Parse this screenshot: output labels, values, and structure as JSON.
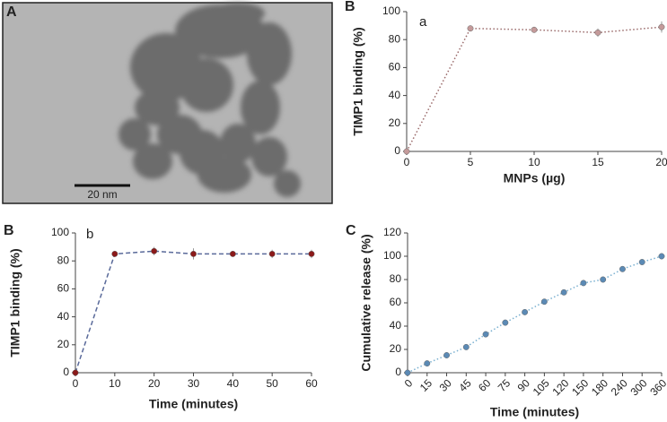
{
  "image_panel": {
    "panel_label": "A",
    "scale_bar": "20 nm"
  },
  "chart_data": [
    {
      "type": "line",
      "panel_label": "B",
      "annotation": "a",
      "x": [
        0,
        5,
        10,
        15,
        20
      ],
      "values": [
        0,
        88,
        87,
        85,
        89
      ],
      "errors": [
        0,
        1.5,
        2,
        3,
        4
      ],
      "line_color": "#9a6a6a",
      "marker_color": "#c49a9a",
      "line_style": "dotted",
      "xlabel": "MNPs (µg)",
      "ylabel": "TIMP1 binding (%)",
      "xlim": [
        0,
        20
      ],
      "xticks": [
        0,
        5,
        10,
        15,
        20
      ],
      "ylim": [
        0,
        100
      ],
      "yticks": [
        0,
        20,
        40,
        60,
        80,
        100
      ]
    },
    {
      "type": "line",
      "panel_label": "B",
      "annotation": "b",
      "x": [
        0,
        10,
        20,
        30,
        40,
        50,
        60
      ],
      "values": [
        0,
        85,
        87,
        85,
        85,
        85,
        85
      ],
      "errors": [
        0,
        2,
        3,
        4,
        2,
        3,
        3
      ],
      "line_color": "#5a6a9a",
      "marker_color": "#8b1a1a",
      "line_style": "dashed",
      "xlabel": "Time (minutes)",
      "ylabel": "TIMP1 binding (%)",
      "xlim": [
        0,
        60
      ],
      "xticks": [
        0,
        10,
        20,
        30,
        40,
        50,
        60
      ],
      "ylim": [
        0,
        100
      ],
      "yticks": [
        0,
        20,
        40,
        60,
        80,
        100
      ]
    },
    {
      "type": "category-line",
      "panel_label": "C",
      "categories": [
        "0",
        "15",
        "30",
        "45",
        "60",
        "75",
        "90",
        "105",
        "120",
        "150",
        "180",
        "240",
        "300",
        "360"
      ],
      "values": [
        0,
        8,
        15,
        22,
        33,
        43,
        52,
        61,
        69,
        77,
        80,
        89,
        95,
        100
      ],
      "errors": [
        0,
        1,
        1,
        1,
        2,
        1,
        1,
        1,
        1,
        1,
        1,
        2,
        1,
        1
      ],
      "line_color": "#7ab0d0",
      "marker_color": "#5b8ab5",
      "line_style": "dotted",
      "xlabel": "Time (minutes)",
      "ylabel": "Cumulative release (%)",
      "ylim": [
        0,
        120
      ],
      "yticks": [
        0,
        20,
        40,
        60,
        80,
        100,
        120
      ]
    }
  ]
}
